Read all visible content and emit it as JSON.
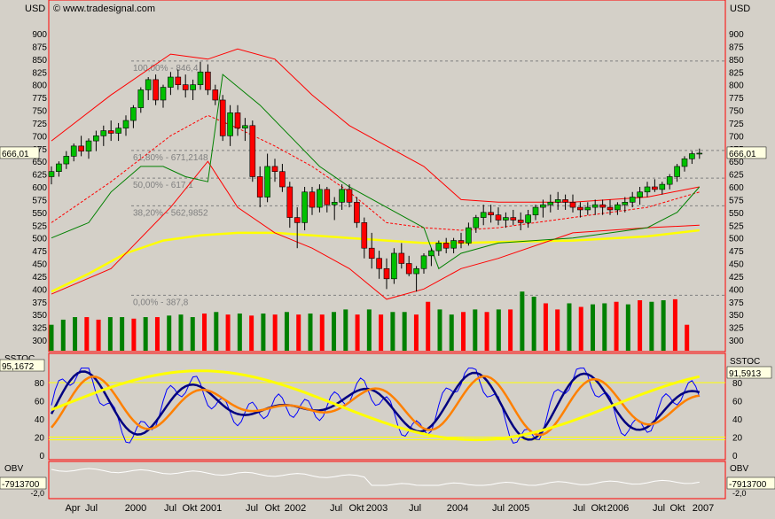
{
  "header": {
    "currency_left": "USD",
    "currency_right": "USD",
    "copyright": "© www.tradesignal.com"
  },
  "colors": {
    "background": "#d4d0c8",
    "panel_border": "#ff0000",
    "grid_dash": "#808080",
    "candle_up": "#00c000",
    "candle_down": "#ff0000",
    "bollinger_upper": "#ff0000",
    "bollinger_lower": "#ff0000",
    "bollinger_mid": "#ff0000",
    "keltner": "#008000",
    "ma": "#ffff00",
    "volume_up": "#008000",
    "volume_down": "#ff0000",
    "stoch_fast": "#000080",
    "stoch_slow": "#0000ff",
    "stoch_orange": "#ff8000",
    "stoch_yellow": "#ffff00",
    "stoch_levels": "#ffff00",
    "obv": "#ffffff"
  },
  "chart_data": [
    {
      "type": "candlestick",
      "name": "price",
      "ylim": [
        290,
        930
      ],
      "yticks": [
        300,
        325,
        350,
        375,
        400,
        425,
        450,
        475,
        500,
        525,
        550,
        575,
        600,
        625,
        650,
        675,
        700,
        725,
        750,
        775,
        800,
        825,
        850,
        875,
        900
      ],
      "last_value_label": "666,01",
      "fibonacci": [
        {
          "label": "100,00% - 846,4",
          "value": 846.4
        },
        {
          "label": "61,80% - 671,2148",
          "value": 671.2148
        },
        {
          "label": "50,00% - 617,1",
          "value": 617.1
        },
        {
          "label": "38,20% - 562,9852",
          "value": 562.9852
        },
        {
          "label": "0,00% - 387,8",
          "value": 387.8
        }
      ],
      "candles": [
        [
          620,
          640,
          605,
          630
        ],
        [
          630,
          650,
          620,
          645
        ],
        [
          645,
          670,
          635,
          660
        ],
        [
          660,
          685,
          650,
          680
        ],
        [
          680,
          700,
          660,
          670
        ],
        [
          670,
          695,
          655,
          690
        ],
        [
          690,
          710,
          670,
          700
        ],
        [
          700,
          720,
          680,
          710
        ],
        [
          710,
          730,
          690,
          705
        ],
        [
          705,
          725,
          690,
          715
        ],
        [
          715,
          740,
          700,
          730
        ],
        [
          730,
          760,
          715,
          755
        ],
        [
          755,
          795,
          745,
          790
        ],
        [
          790,
          815,
          770,
          810
        ],
        [
          810,
          820,
          760,
          770
        ],
        [
          770,
          800,
          755,
          795
        ],
        [
          795,
          825,
          780,
          815
        ],
        [
          815,
          830,
          790,
          800
        ],
        [
          800,
          820,
          775,
          790
        ],
        [
          790,
          810,
          770,
          800
        ],
        [
          800,
          845,
          790,
          825
        ],
        [
          825,
          840,
          780,
          790
        ],
        [
          790,
          800,
          760,
          770
        ],
        [
          770,
          780,
          690,
          700
        ],
        [
          700,
          760,
          680,
          745
        ],
        [
          745,
          760,
          700,
          715
        ],
        [
          715,
          735,
          690,
          720
        ],
        [
          720,
          730,
          610,
          620
        ],
        [
          620,
          640,
          560,
          580
        ],
        [
          580,
          665,
          570,
          640
        ],
        [
          640,
          655,
          610,
          630
        ],
        [
          630,
          645,
          590,
          600
        ],
        [
          600,
          610,
          520,
          540
        ],
        [
          540,
          560,
          480,
          530
        ],
        [
          530,
          600,
          515,
          590
        ],
        [
          590,
          600,
          545,
          560
        ],
        [
          560,
          605,
          550,
          595
        ],
        [
          595,
          600,
          550,
          565
        ],
        [
          565,
          580,
          535,
          570
        ],
        [
          570,
          605,
          555,
          595
        ],
        [
          595,
          605,
          560,
          570
        ],
        [
          570,
          580,
          520,
          530
        ],
        [
          530,
          540,
          460,
          480
        ],
        [
          480,
          510,
          440,
          460
        ],
        [
          460,
          475,
          420,
          440
        ],
        [
          440,
          460,
          400,
          420
        ],
        [
          420,
          480,
          410,
          470
        ],
        [
          470,
          490,
          440,
          450
        ],
        [
          450,
          465,
          425,
          430
        ],
        [
          430,
          445,
          395,
          440
        ],
        [
          440,
          470,
          430,
          465
        ],
        [
          465,
          480,
          445,
          475
        ],
        [
          475,
          495,
          465,
          490
        ],
        [
          490,
          500,
          470,
          480
        ],
        [
          480,
          500,
          470,
          495
        ],
        [
          495,
          510,
          480,
          490
        ],
        [
          490,
          530,
          485,
          520
        ],
        [
          520,
          545,
          510,
          540
        ],
        [
          540,
          565,
          525,
          550
        ],
        [
          550,
          565,
          530,
          545
        ],
        [
          545,
          560,
          525,
          535
        ],
        [
          535,
          550,
          520,
          540
        ],
        [
          540,
          555,
          525,
          535
        ],
        [
          535,
          550,
          515,
          530
        ],
        [
          530,
          555,
          520,
          545
        ],
        [
          545,
          565,
          535,
          560
        ],
        [
          560,
          575,
          540,
          565
        ],
        [
          565,
          585,
          550,
          570
        ],
        [
          570,
          590,
          555,
          575
        ],
        [
          575,
          585,
          555,
          570
        ],
        [
          570,
          585,
          550,
          560
        ],
        [
          560,
          570,
          540,
          555
        ],
        [
          555,
          570,
          545,
          560
        ],
        [
          560,
          575,
          545,
          565
        ],
        [
          565,
          575,
          545,
          560
        ],
        [
          560,
          575,
          545,
          555
        ],
        [
          555,
          570,
          545,
          565
        ],
        [
          565,
          580,
          550,
          570
        ],
        [
          570,
          590,
          560,
          580
        ],
        [
          580,
          600,
          565,
          590
        ],
        [
          590,
          610,
          580,
          600
        ],
        [
          600,
          615,
          590,
          595
        ],
        [
          595,
          610,
          585,
          605
        ],
        [
          605,
          625,
          595,
          620
        ],
        [
          620,
          645,
          610,
          640
        ],
        [
          640,
          660,
          630,
          655
        ],
        [
          655,
          670,
          645,
          665
        ],
        [
          665,
          675,
          655,
          666
        ]
      ],
      "bollinger_upper": [
        [
          0,
          690
        ],
        [
          8,
          780
        ],
        [
          16,
          860
        ],
        [
          21,
          850
        ],
        [
          25,
          870
        ],
        [
          30,
          850
        ],
        [
          35,
          780
        ],
        [
          40,
          720
        ],
        [
          45,
          680
        ],
        [
          50,
          640
        ],
        [
          55,
          575
        ],
        [
          60,
          570
        ],
        [
          70,
          570
        ],
        [
          80,
          580
        ],
        [
          87,
          600
        ]
      ],
      "bollinger_lower": [
        [
          0,
          390
        ],
        [
          8,
          440
        ],
        [
          16,
          560
        ],
        [
          21,
          650
        ],
        [
          25,
          560
        ],
        [
          30,
          510
        ],
        [
          35,
          480
        ],
        [
          40,
          440
        ],
        [
          45,
          380
        ],
        [
          50,
          400
        ],
        [
          55,
          440
        ],
        [
          60,
          460
        ],
        [
          70,
          510
        ],
        [
          80,
          520
        ],
        [
          87,
          525
        ]
      ],
      "bollinger_mid": [
        [
          0,
          530
        ],
        [
          8,
          610
        ],
        [
          16,
          700
        ],
        [
          21,
          740
        ],
        [
          25,
          715
        ],
        [
          30,
          680
        ],
        [
          35,
          640
        ],
        [
          40,
          590
        ],
        [
          45,
          530
        ],
        [
          50,
          520
        ],
        [
          55,
          515
        ],
        [
          60,
          520
        ],
        [
          70,
          540
        ],
        [
          80,
          560
        ],
        [
          87,
          590
        ]
      ],
      "keltner": [
        [
          0,
          500
        ],
        [
          5,
          530
        ],
        [
          8,
          590
        ],
        [
          12,
          640
        ],
        [
          15,
          640
        ],
        [
          18,
          620
        ],
        [
          21,
          610
        ],
        [
          23,
          820
        ],
        [
          28,
          760
        ],
        [
          32,
          700
        ],
        [
          36,
          640
        ],
        [
          40,
          600
        ],
        [
          45,
          560
        ],
        [
          50,
          520
        ],
        [
          52,
          440
        ],
        [
          55,
          470
        ],
        [
          60,
          490
        ],
        [
          70,
          500
        ],
        [
          80,
          520
        ],
        [
          84,
          550
        ],
        [
          87,
          600
        ]
      ],
      "ma": [
        [
          0,
          395
        ],
        [
          5,
          430
        ],
        [
          10,
          470
        ],
        [
          15,
          495
        ],
        [
          20,
          505
        ],
        [
          25,
          510
        ],
        [
          30,
          510
        ],
        [
          35,
          505
        ],
        [
          40,
          500
        ],
        [
          45,
          495
        ],
        [
          50,
          490
        ],
        [
          55,
          490
        ],
        [
          60,
          492
        ],
        [
          70,
          495
        ],
        [
          80,
          503
        ],
        [
          87,
          515
        ]
      ]
    },
    {
      "type": "bar",
      "name": "volume",
      "values": [
        [
          330,
          1
        ],
        [
          340,
          1
        ],
        [
          345,
          1
        ],
        [
          345,
          0
        ],
        [
          340,
          0
        ],
        [
          345,
          1
        ],
        [
          345,
          1
        ],
        [
          342,
          0
        ],
        [
          345,
          1
        ],
        [
          345,
          0
        ],
        [
          348,
          1
        ],
        [
          350,
          1
        ],
        [
          345,
          1
        ],
        [
          352,
          0
        ],
        [
          355,
          1
        ],
        [
          350,
          0
        ],
        [
          352,
          1
        ],
        [
          348,
          0
        ],
        [
          352,
          1
        ],
        [
          350,
          0
        ],
        [
          355,
          1
        ],
        [
          350,
          0
        ],
        [
          352,
          1
        ],
        [
          350,
          0
        ],
        [
          355,
          1
        ],
        [
          360,
          1
        ],
        [
          350,
          0
        ],
        [
          360,
          1
        ],
        [
          350,
          0
        ],
        [
          355,
          1
        ],
        [
          355,
          1
        ],
        [
          350,
          0
        ],
        [
          375,
          0
        ],
        [
          360,
          1
        ],
        [
          350,
          1
        ],
        [
          355,
          0
        ],
        [
          360,
          1
        ],
        [
          355,
          0
        ],
        [
          360,
          1
        ],
        [
          360,
          0
        ],
        [
          395,
          1
        ],
        [
          385,
          1
        ],
        [
          372,
          0
        ],
        [
          360,
          0
        ],
        [
          372,
          1
        ],
        [
          365,
          0
        ],
        [
          370,
          1
        ],
        [
          372,
          1
        ],
        [
          375,
          0
        ],
        [
          370,
          1
        ],
        [
          378,
          0
        ],
        [
          375,
          1
        ],
        [
          378,
          1
        ],
        [
          380,
          0
        ],
        [
          330,
          0
        ]
      ]
    },
    {
      "type": "line",
      "name": "SSTOC",
      "title": "SSTOC",
      "ylim": [
        -5,
        100
      ],
      "yticks": [
        0,
        20,
        40,
        60,
        80
      ],
      "levels": [
        80,
        20
      ],
      "value_label_left": "95,1672",
      "value_label_right": "91,5913"
    },
    {
      "type": "line",
      "name": "OBV",
      "title": "OBV",
      "value_label_left": "-7913700",
      "value_label_right": "-7913700",
      "tick_label": "-2,0"
    }
  ],
  "x_axis": {
    "labels": [
      "Apr",
      "Jul",
      "2000",
      "Jul",
      "Okt",
      "2001",
      "Jul",
      "Okt",
      "2002",
      "Jul",
      "Okt",
      "2003",
      "Jul",
      "2004",
      "Jul",
      "2005",
      "Jul",
      "Okt",
      "2006",
      "Jul",
      "Okt",
      "2007"
    ]
  }
}
